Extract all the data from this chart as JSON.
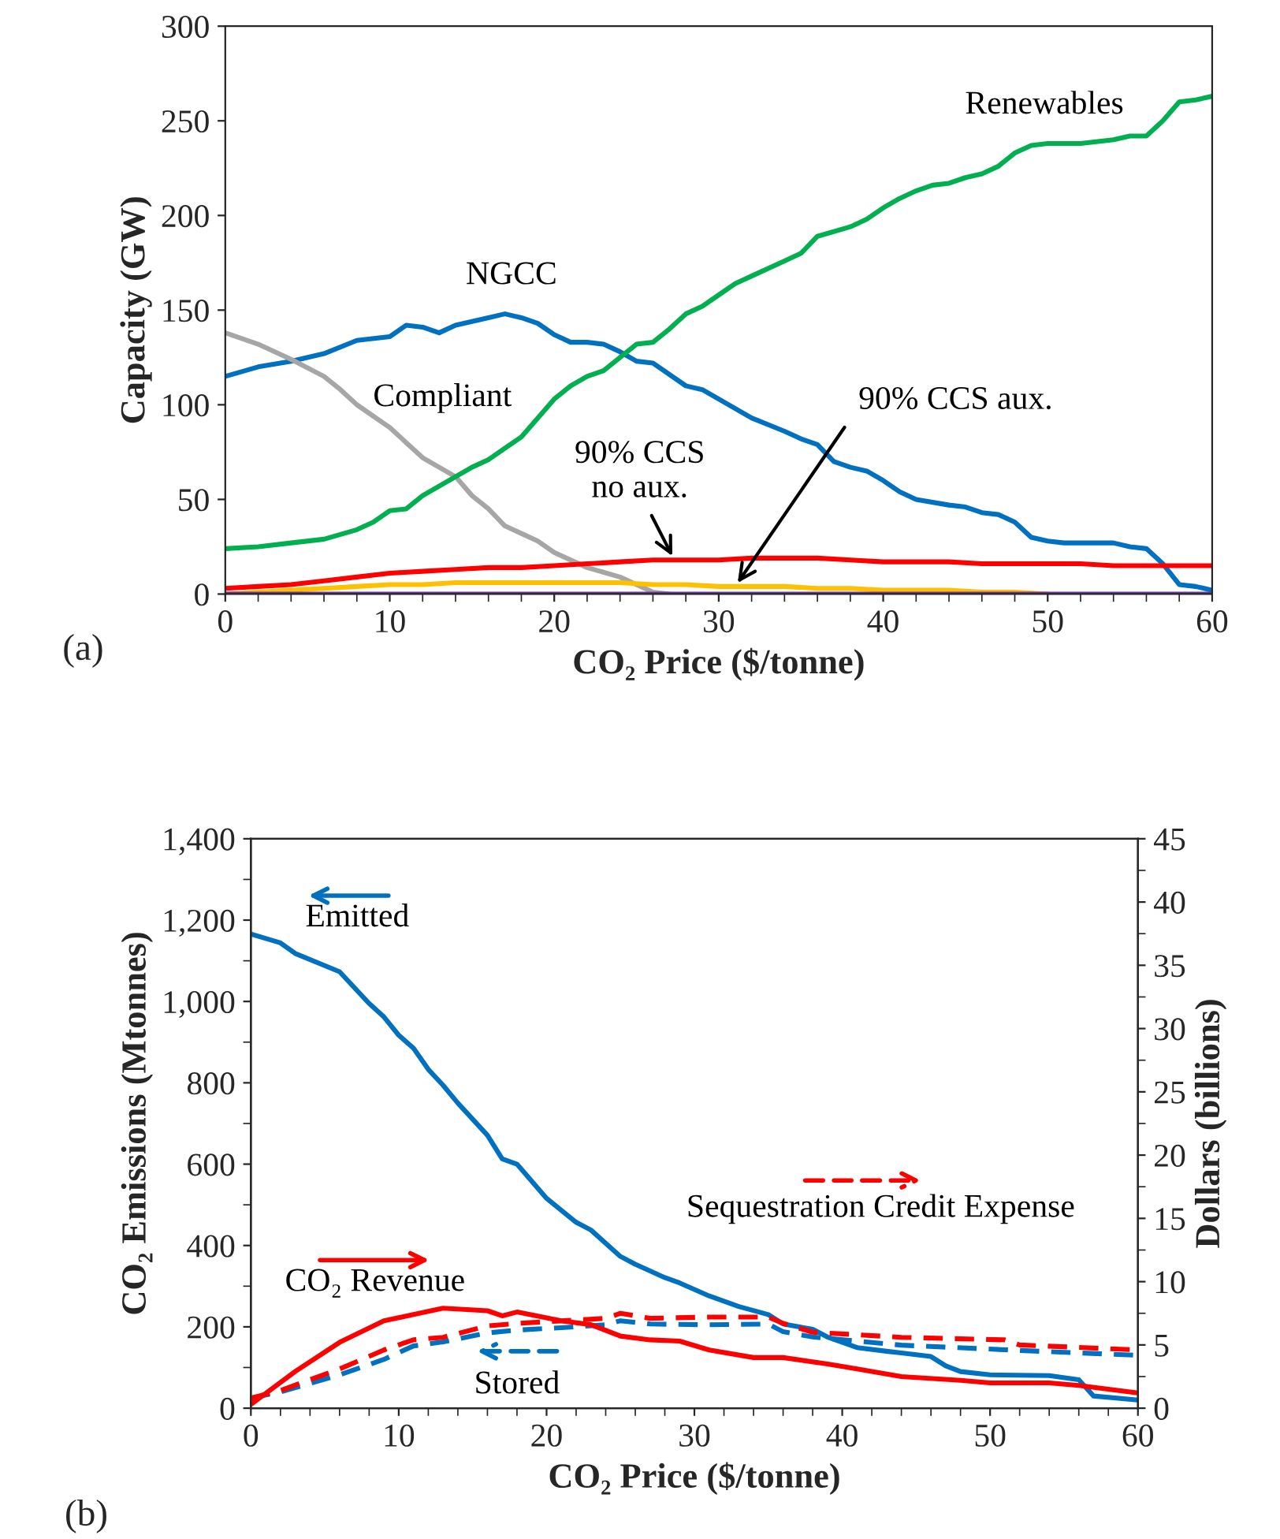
{
  "chart_data": [
    {
      "type": "line",
      "xlabel": "CO₂ Price ($/tonne)",
      "ylabel": "Capacity (GW)",
      "xlim": [
        0,
        60
      ],
      "xticks": [
        0,
        {
          "value": 2,
          "label": null
        },
        {
          "value": 4,
          "label": null
        },
        {
          "value": 6,
          "label": null
        },
        {
          "value": 8,
          "label": null
        },
        10,
        {
          "value": 12,
          "label": null
        },
        {
          "value": 14,
          "label": null
        },
        {
          "value": 16,
          "label": null
        },
        {
          "value": 18,
          "label": null
        },
        20,
        {
          "value": 22,
          "label": null
        },
        {
          "value": 24,
          "label": null
        },
        {
          "value": 26,
          "label": null
        },
        {
          "value": 28,
          "label": null
        },
        30,
        {
          "value": 32,
          "label": null
        },
        {
          "value": 34,
          "label": null
        },
        {
          "value": 36,
          "label": null
        },
        {
          "value": 38,
          "label": null
        },
        40,
        {
          "value": 42,
          "label": null
        },
        {
          "value": 44,
          "label": null
        },
        {
          "value": 46,
          "label": null
        },
        {
          "value": 48,
          "label": null
        },
        50,
        {
          "value": 52,
          "label": null
        },
        {
          "value": 54,
          "label": null
        },
        {
          "value": 56,
          "label": null
        },
        {
          "value": 58,
          "label": null
        },
        60
      ],
      "ylim": [
        0,
        300
      ],
      "yticks": [
        0,
        50,
        100,
        150,
        200,
        250,
        300
      ],
      "line_style": "solid",
      "annotations": [
        "(a)"
      ],
      "series": [
        {
          "name": "NGCC",
          "color": "#0070c0",
          "x": [
            0,
            2,
            4,
            6,
            8,
            10,
            11,
            12,
            13,
            14,
            16,
            17,
            18,
            19,
            20,
            21,
            22,
            23,
            24,
            25,
            26,
            28,
            29,
            30,
            32,
            34,
            35,
            36,
            37,
            38,
            39,
            40,
            41,
            42,
            44,
            45,
            46,
            47,
            48,
            49,
            50,
            51,
            52,
            54,
            55,
            56,
            57,
            58,
            59,
            60
          ],
          "values": [
            115,
            120,
            123,
            127,
            134,
            136,
            142,
            141,
            138,
            142,
            146,
            148,
            146,
            143,
            137,
            133,
            133,
            132,
            128,
            123,
            122,
            110,
            108,
            103,
            93,
            86,
            82,
            79,
            70,
            67,
            65,
            60,
            54,
            50,
            47,
            46,
            43,
            42,
            38,
            30,
            28,
            27,
            27,
            27,
            25,
            24,
            16,
            5,
            4,
            2
          ]
        },
        {
          "name": "Compliant",
          "color": "#a6a6a6",
          "x": [
            0,
            2,
            4,
            6,
            7,
            8,
            10,
            11,
            12,
            14,
            15,
            16,
            17,
            18,
            19,
            20,
            22,
            24,
            25,
            26,
            27
          ],
          "values": [
            138,
            132,
            124,
            115,
            108,
            100,
            88,
            80,
            72,
            62,
            52,
            45,
            36,
            32,
            28,
            22,
            14,
            9,
            5,
            1,
            0
          ]
        },
        {
          "name": "Renewables",
          "color": "#00b050",
          "x": [
            0,
            2,
            4,
            6,
            8,
            9,
            10,
            11,
            12,
            14,
            15,
            16,
            17,
            18,
            19,
            20,
            21,
            22,
            23,
            24,
            25,
            26,
            27,
            28,
            29,
            30,
            31,
            32,
            34,
            35,
            36,
            38,
            39,
            40,
            41,
            42,
            43,
            44,
            45,
            46,
            47,
            48,
            49,
            50,
            52,
            54,
            55,
            56,
            57,
            58,
            59,
            60
          ],
          "values": [
            24,
            25,
            27,
            29,
            34,
            38,
            44,
            45,
            52,
            62,
            67,
            71,
            77,
            83,
            93,
            103,
            110,
            115,
            118,
            125,
            132,
            133,
            140,
            148,
            152,
            158,
            164,
            168,
            176,
            180,
            189,
            194,
            198,
            204,
            209,
            213,
            216,
            217,
            220,
            222,
            226,
            233,
            237,
            238,
            238,
            240,
            242,
            242,
            250,
            260,
            261,
            263
          ]
        },
        {
          "name": "90% CCS\nno aux.",
          "color": "#ff0000",
          "x": [
            0,
            2,
            4,
            6,
            8,
            10,
            12,
            14,
            16,
            18,
            20,
            22,
            24,
            26,
            28,
            30,
            32,
            34,
            36,
            38,
            40,
            42,
            44,
            46,
            48,
            50,
            52,
            54,
            56,
            58,
            60
          ],
          "values": [
            3,
            4,
            5,
            7,
            9,
            11,
            12,
            13,
            14,
            14,
            15,
            16,
            17,
            18,
            18,
            18,
            19,
            19,
            19,
            18,
            17,
            17,
            17,
            16,
            16,
            16,
            16,
            15,
            15,
            15,
            15
          ]
        },
        {
          "name": "90% CCS aux.",
          "color": "#ffc000",
          "x": [
            0,
            2,
            4,
            6,
            8,
            10,
            12,
            14,
            16,
            18,
            20,
            22,
            24,
            26,
            28,
            30,
            32,
            34,
            36,
            38,
            40,
            42,
            44,
            46,
            48,
            50
          ],
          "values": [
            0,
            1,
            2,
            3,
            4,
            5,
            5,
            6,
            6,
            6,
            6,
            6,
            6,
            5,
            5,
            4,
            4,
            4,
            3,
            3,
            2,
            2,
            2,
            1,
            1,
            0
          ]
        },
        {
          "color": "#7030a0",
          "x": [
            0,
            60
          ],
          "values": [
            0,
            0
          ]
        }
      ]
    },
    {
      "type": "line",
      "xlabel": "CO₂ Price ($/tonne)",
      "ylabel": "CO₂ Emissions (Mtonnes)",
      "y2label": "Dollars (billions)",
      "xlim": [
        0,
        60
      ],
      "xticks": [
        0,
        {
          "value": 2,
          "label": null
        },
        {
          "value": 4,
          "label": null
        },
        {
          "value": 6,
          "label": null
        },
        {
          "value": 8,
          "label": null
        },
        10,
        {
          "value": 12,
          "label": null
        },
        {
          "value": 14,
          "label": null
        },
        {
          "value": 16,
          "label": null
        },
        {
          "value": 18,
          "label": null
        },
        20,
        {
          "value": 22,
          "label": null
        },
        {
          "value": 24,
          "label": null
        },
        {
          "value": 26,
          "label": null
        },
        {
          "value": 28,
          "label": null
        },
        30,
        {
          "value": 32,
          "label": null
        },
        {
          "value": 34,
          "label": null
        },
        {
          "value": 36,
          "label": null
        },
        {
          "value": 38,
          "label": null
        },
        40,
        {
          "value": 42,
          "label": null
        },
        {
          "value": 44,
          "label": null
        },
        {
          "value": 46,
          "label": null
        },
        {
          "value": 48,
          "label": null
        },
        50,
        {
          "value": 52,
          "label": null
        },
        {
          "value": 54,
          "label": null
        },
        {
          "value": 56,
          "label": null
        },
        {
          "value": 58,
          "label": null
        },
        60
      ],
      "ylim": [
        0,
        1400
      ],
      "yticks": [
        0,
        {
          "value": 100,
          "label": null
        },
        200,
        {
          "value": 300,
          "label": null
        },
        400,
        {
          "value": 500,
          "label": null
        },
        600,
        {
          "value": 700,
          "label": null
        },
        800,
        {
          "value": 900,
          "label": null
        },
        {
          "value": 1000,
          "label": "1,000"
        },
        {
          "value": 1100,
          "label": null
        },
        {
          "value": 1200,
          "label": "1,200"
        },
        {
          "value": 1300,
          "label": null
        },
        {
          "value": 1400,
          "label": "1,400"
        }
      ],
      "y2lim": [
        0,
        45
      ],
      "y2ticks": [
        0,
        {
          "value": 2.5,
          "label": null
        },
        5,
        {
          "value": 7.5,
          "label": null
        },
        10,
        {
          "value": 12.5,
          "label": null
        },
        15,
        {
          "value": 17.5,
          "label": null
        },
        20,
        {
          "value": 22.5,
          "label": null
        },
        25,
        {
          "value": 27.5,
          "label": null
        },
        30,
        {
          "value": 32.5,
          "label": null
        },
        35,
        {
          "value": 37.5,
          "label": null
        },
        40,
        {
          "value": 42.5,
          "label": null
        },
        45
      ],
      "annotations": [
        "(b)"
      ],
      "legend": "left",
      "series": [
        {
          "name": "Emitted",
          "color": "#0070c0",
          "line_style": "solid",
          "x": [
            0,
            2,
            3,
            6,
            8,
            9,
            10,
            11,
            12,
            13,
            14,
            16,
            17,
            18,
            20,
            22,
            23,
            25,
            26,
            28,
            29,
            31,
            33,
            35,
            36,
            38,
            39,
            41,
            43,
            44,
            46,
            47,
            48,
            50,
            54,
            56,
            57,
            60
          ],
          "values": [
            1166,
            1144,
            1118,
            1073,
            995,
            962,
            917,
            885,
            833,
            794,
            750,
            671,
            613,
            600,
            516,
            457,
            438,
            373,
            354,
            321,
            308,
            276,
            250,
            230,
            207,
            194,
            175,
            149,
            140,
            136,
            127,
            104,
            90,
            82,
            80,
            70,
            30,
            20
          ]
        },
        {
          "name": "Stored",
          "color": "#0070c0",
          "line_style": "dashed",
          "x": [
            0,
            2,
            6,
            9,
            11,
            13,
            16,
            18,
            21,
            24,
            25,
            27,
            31,
            35,
            36,
            38,
            44,
            52,
            60
          ],
          "values": [
            25,
            40,
            82,
            120,
            153,
            163,
            185,
            192,
            198,
            205,
            215,
            207,
            205,
            207,
            188,
            175,
            155,
            142,
            130
          ]
        },
        {
          "name": "CO₂ Revenue",
          "color": "#ff0000",
          "line_style": "solid",
          "axis": "y2",
          "x": [
            0,
            3,
            6,
            9,
            11,
            13,
            16,
            17,
            18,
            21,
            23,
            25,
            27,
            29,
            31,
            34,
            36,
            39,
            41,
            44,
            48,
            50,
            54,
            56,
            60
          ],
          "values": [
            0.3,
            2.9,
            5.2,
            6.9,
            7.4,
            7.9,
            7.7,
            7.3,
            7.6,
            6.9,
            6.6,
            5.7,
            5.4,
            5.3,
            4.6,
            4.0,
            4.0,
            3.5,
            3.1,
            2.5,
            2.2,
            2.0,
            2.0,
            1.8,
            1.2
          ]
        },
        {
          "name": "Sequestration Credit Expense",
          "color": "#ff0000",
          "line_style": "dashed",
          "axis": "y2",
          "x": [
            0,
            2,
            6,
            9,
            11,
            13,
            16,
            18,
            21,
            24,
            25,
            27,
            31,
            35,
            36,
            38,
            44,
            51,
            52,
            60
          ],
          "values": [
            0.8,
            1.4,
            3.1,
            4.6,
            5.4,
            5.6,
            6.5,
            6.7,
            6.9,
            7.1,
            7.5,
            7.1,
            7.2,
            7.2,
            6.7,
            6.0,
            5.6,
            5.4,
            5.0,
            4.6
          ]
        }
      ]
    }
  ]
}
